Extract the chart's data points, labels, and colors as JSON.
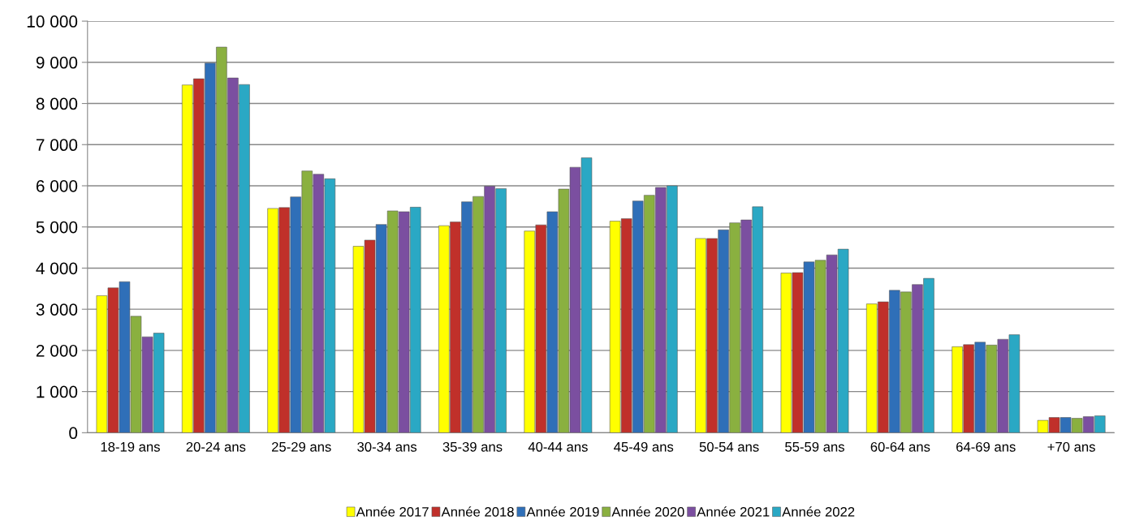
{
  "chart_data": {
    "type": "bar",
    "categories": [
      "18-19 ans",
      "20-24 ans",
      "25-29 ans",
      "30-34 ans",
      "35-39 ans",
      "40-44 ans",
      "45-49 ans",
      "50-54 ans",
      "55-59 ans",
      "60-64 ans",
      "64-69 ans",
      "+70 ans"
    ],
    "series": [
      {
        "name": "Année 2017",
        "color": "#ffff00",
        "values": [
          3330,
          8450,
          5450,
          4530,
          5030,
          4900,
          5140,
          4720,
          3880,
          3130,
          2090,
          300
        ]
      },
      {
        "name": "Année 2018",
        "color": "#c0302a",
        "values": [
          3520,
          8600,
          5470,
          4680,
          5120,
          5050,
          5200,
          4720,
          3890,
          3180,
          2140,
          370
        ]
      },
      {
        "name": "Année 2019",
        "color": "#2f6fb8",
        "values": [
          3670,
          8980,
          5730,
          5060,
          5610,
          5370,
          5630,
          4930,
          4150,
          3460,
          2200,
          370
        ]
      },
      {
        "name": "Année 2020",
        "color": "#8ab040",
        "values": [
          2830,
          9370,
          6360,
          5390,
          5740,
          5920,
          5770,
          5100,
          4190,
          3420,
          2130,
          350
        ]
      },
      {
        "name": "Année 2021",
        "color": "#7b4fa0",
        "values": [
          2330,
          8620,
          6280,
          5370,
          5990,
          6450,
          5960,
          5170,
          4320,
          3600,
          2270,
          390
        ]
      },
      {
        "name": "Année 2022",
        "color": "#2aa8c4",
        "values": [
          2420,
          8460,
          6170,
          5480,
          5930,
          6680,
          6000,
          5490,
          4460,
          3750,
          2380,
          410
        ]
      }
    ],
    "ylim": [
      0,
      10000
    ],
    "yticks": [
      0,
      {
        "value": 1000,
        "label": "1 000"
      },
      {
        "value": 2000,
        "label": "2 000"
      },
      {
        "value": 3000,
        "label": "3 000"
      },
      {
        "value": 4000,
        "label": "4 000"
      },
      {
        "value": 5000,
        "label": "5 000"
      },
      {
        "value": 6000,
        "label": "6 000"
      },
      {
        "value": 7000,
        "label": "7 000"
      },
      {
        "value": 8000,
        "label": "8 000"
      },
      {
        "value": 9000,
        "label": "9 000"
      },
      {
        "value": 10000,
        "label": "10 000"
      }
    ],
    "grid": "y",
    "legend": "bottom"
  }
}
